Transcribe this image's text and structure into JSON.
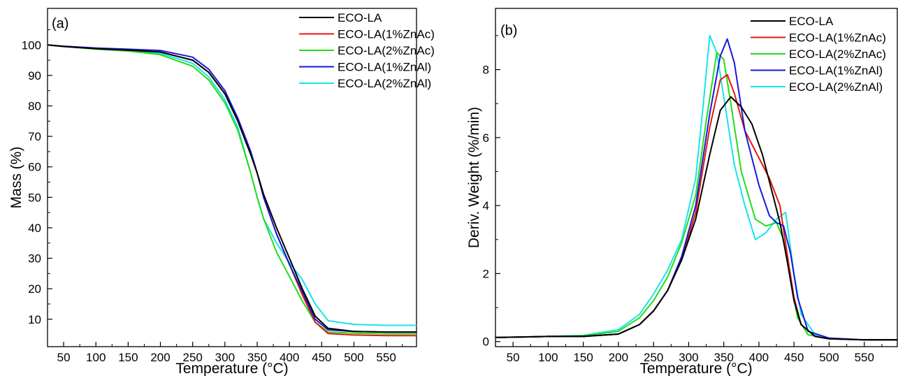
{
  "chart_data": [
    {
      "type": "line",
      "panel": "(a)",
      "xlabel": "Temperature (°C)",
      "ylabel": "Mass (%)",
      "xlim": [
        25,
        597
      ],
      "ylim": [
        1,
        112
      ],
      "xticks": [
        50,
        100,
        150,
        200,
        250,
        300,
        350,
        400,
        450,
        500,
        550
      ],
      "yticks": [
        10,
        20,
        30,
        40,
        50,
        60,
        70,
        80,
        90,
        100
      ],
      "legend_position": "top-right",
      "series": [
        {
          "name": "ECO-LA",
          "color": "#000000",
          "x": [
            25,
            50,
            100,
            150,
            200,
            250,
            275,
            300,
            320,
            340,
            350,
            360,
            380,
            400,
            420,
            440,
            460,
            500,
            550,
            597
          ],
          "y": [
            100,
            99.5,
            98.8,
            98.3,
            97.7,
            95,
            91,
            84,
            75,
            64,
            58,
            51,
            40,
            30,
            20,
            11,
            7,
            6,
            5.8,
            5.8
          ]
        },
        {
          "name": "ECO-LA(1%ZnAc)",
          "color": "#e8170e",
          "x": [
            25,
            50,
            100,
            150,
            200,
            250,
            275,
            300,
            320,
            340,
            350,
            360,
            380,
            400,
            420,
            440,
            460,
            500,
            550,
            597
          ],
          "y": [
            100,
            99.5,
            98.8,
            98.3,
            97.7,
            95,
            91,
            84,
            76,
            65,
            58,
            50,
            38,
            28,
            18,
            9,
            5.3,
            4.8,
            4.6,
            4.6
          ]
        },
        {
          "name": "ECO-LA(2%ZnAc)",
          "color": "#22dd16",
          "x": [
            25,
            50,
            100,
            150,
            200,
            250,
            275,
            300,
            320,
            340,
            350,
            360,
            380,
            400,
            420,
            440,
            460,
            500,
            550,
            597
          ],
          "y": [
            100,
            99.5,
            98.6,
            98,
            96.8,
            93,
            88.5,
            81,
            72,
            58,
            50,
            43,
            32,
            24,
            16,
            9,
            5.8,
            5.4,
            5.2,
            5.2
          ]
        },
        {
          "name": "ECO-LA(1%ZnAl)",
          "color": "#1818d8",
          "x": [
            25,
            50,
            100,
            150,
            200,
            250,
            275,
            300,
            320,
            340,
            350,
            360,
            380,
            400,
            420,
            440,
            460,
            500,
            550,
            597
          ],
          "y": [
            100,
            99.6,
            99,
            98.6,
            98.2,
            96,
            92,
            85,
            76,
            65,
            58,
            50,
            38,
            28,
            19,
            10,
            6.5,
            6,
            5.8,
            5.8
          ]
        },
        {
          "name": "ECO-LA(2%ZnAl)",
          "color": "#17e4ea",
          "x": [
            25,
            50,
            100,
            150,
            200,
            250,
            275,
            300,
            320,
            340,
            350,
            360,
            380,
            400,
            420,
            440,
            460,
            500,
            550,
            597
          ],
          "y": [
            100,
            99.5,
            98.7,
            98.1,
            97.2,
            94,
            89.5,
            82,
            73,
            58,
            50,
            43,
            35,
            28.5,
            23,
            15,
            9.5,
            8.3,
            8,
            8
          ]
        }
      ]
    },
    {
      "type": "line",
      "panel": "(b)",
      "xlabel": "Temperature (°C)",
      "ylabel": "Deriv. Weight (%/min)",
      "xlim": [
        25,
        597
      ],
      "ylim": [
        -0.15,
        9.8
      ],
      "xticks": [
        50,
        100,
        150,
        200,
        250,
        300,
        350,
        400,
        450,
        500,
        550
      ],
      "yticks": [
        0,
        2,
        4,
        6,
        8
      ],
      "legend_position": "top-right",
      "series": [
        {
          "name": "ECO-LA",
          "color": "#000000",
          "x": [
            25,
            100,
            150,
            200,
            230,
            250,
            270,
            290,
            310,
            330,
            345,
            360,
            375,
            390,
            405,
            420,
            430,
            440,
            450,
            460,
            480,
            500,
            550,
            597
          ],
          "y": [
            0.12,
            0.15,
            0.15,
            0.22,
            0.5,
            0.9,
            1.5,
            2.4,
            3.6,
            5.5,
            6.8,
            7.2,
            6.9,
            6.4,
            5.5,
            4.3,
            3.5,
            2.4,
            1.2,
            0.5,
            0.15,
            0.08,
            0.05,
            0.05
          ]
        },
        {
          "name": "ECO-LA(1%ZnAc)",
          "color": "#e8170e",
          "x": [
            25,
            100,
            150,
            200,
            230,
            250,
            270,
            290,
            310,
            330,
            345,
            355,
            365,
            380,
            400,
            415,
            430,
            440,
            450,
            460,
            480,
            500,
            550,
            597
          ],
          "y": [
            0.12,
            0.15,
            0.15,
            0.22,
            0.5,
            0.9,
            1.5,
            2.4,
            3.8,
            6.3,
            7.7,
            7.85,
            7.3,
            6.2,
            5.4,
            4.8,
            4.0,
            2.6,
            1.3,
            0.5,
            0.15,
            0.08,
            0.05,
            0.05
          ]
        },
        {
          "name": "ECO-LA(2%ZnAc)",
          "color": "#22dd16",
          "x": [
            25,
            100,
            150,
            200,
            230,
            250,
            270,
            290,
            310,
            325,
            340,
            350,
            360,
            375,
            395,
            410,
            425,
            435,
            445,
            455,
            470,
            500,
            550,
            597
          ],
          "y": [
            0.12,
            0.15,
            0.17,
            0.3,
            0.7,
            1.2,
            1.9,
            2.9,
            4.3,
            6.5,
            8.5,
            8.3,
            7.0,
            5.0,
            3.6,
            3.4,
            3.5,
            3.0,
            1.8,
            0.7,
            0.2,
            0.08,
            0.05,
            0.05
          ]
        },
        {
          "name": "ECO-LA(1%ZnAl)",
          "color": "#1818d8",
          "x": [
            25,
            100,
            150,
            200,
            230,
            250,
            270,
            290,
            310,
            330,
            345,
            355,
            365,
            380,
            400,
            415,
            425,
            435,
            445,
            455,
            470,
            500,
            550,
            597
          ],
          "y": [
            0.12,
            0.15,
            0.15,
            0.22,
            0.5,
            0.9,
            1.5,
            2.5,
            4.0,
            6.7,
            8.4,
            8.9,
            8.2,
            6.2,
            4.6,
            3.7,
            3.5,
            3.4,
            2.6,
            1.3,
            0.3,
            0.1,
            0.05,
            0.05
          ]
        },
        {
          "name": "ECO-LA(2%ZnAl)",
          "color": "#17e4ea",
          "x": [
            25,
            100,
            150,
            200,
            230,
            250,
            270,
            290,
            310,
            320,
            330,
            340,
            350,
            365,
            380,
            395,
            410,
            425,
            438,
            450,
            460,
            480,
            500,
            550,
            597
          ],
          "y": [
            0.12,
            0.15,
            0.18,
            0.35,
            0.8,
            1.4,
            2.1,
            3.0,
            4.8,
            6.8,
            9.0,
            8.5,
            7.2,
            5.2,
            4.0,
            3.0,
            3.2,
            3.6,
            3.8,
            2.0,
            0.8,
            0.2,
            0.08,
            0.05,
            0.05
          ]
        }
      ]
    }
  ]
}
